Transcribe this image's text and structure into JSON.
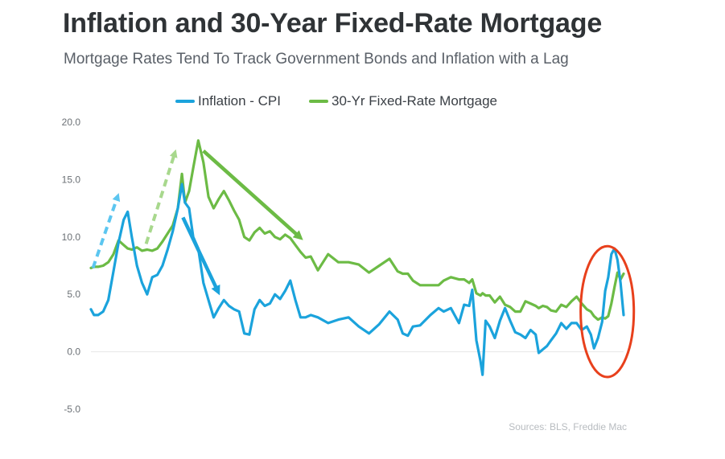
{
  "header": {
    "title": "Inflation and 30-Year Fixed-Rate Mortgage",
    "subtitle": "Mortgage Rates Tend To Track Government Bonds and Inflation with a Lag"
  },
  "source_note": "Sources: BLS, Freddie Mac",
  "colors": {
    "cpi": "#1ba3dc",
    "mortgage": "#6cbb45",
    "circle": "#e8401c",
    "grid": "#e6e6e6"
  },
  "chart_data": {
    "type": "line",
    "title": "Inflation and 30-Year Fixed-Rate Mortgage",
    "subtitle": "Mortgage Rates Tend To Track Government Bonds and Inflation with a Lag",
    "xlabel": "",
    "ylabel": "",
    "ylim": [
      -5,
      20
    ],
    "xlim": [
      1971.3,
      2023.4
    ],
    "yticks": [
      "20.0",
      "15.0",
      "10.0",
      "5.0",
      "0.0",
      "-5.0"
    ],
    "ytick_values": [
      20,
      15,
      10,
      5,
      0,
      -5
    ],
    "grid": false,
    "legend_position": "top-center",
    "series": [
      {
        "name": "Inflation - CPI",
        "x": [
          1971.3,
          1971.6,
          1972.0,
          1972.5,
          1973.0,
          1973.5,
          1974.0,
          1974.5,
          1974.9,
          1975.3,
          1975.8,
          1976.3,
          1976.8,
          1977.3,
          1977.8,
          1978.3,
          1978.8,
          1979.3,
          1979.8,
          1980.2,
          1980.5,
          1980.9,
          1981.3,
          1981.8,
          1982.3,
          1982.8,
          1983.3,
          1983.8,
          1984.3,
          1984.8,
          1985.3,
          1985.8,
          1986.3,
          1986.8,
          1987.3,
          1987.8,
          1988.3,
          1988.8,
          1989.3,
          1989.8,
          1990.3,
          1990.8,
          1991.3,
          1991.8,
          1992.3,
          1992.8,
          1993.5,
          1994.5,
          1995.5,
          1996.5,
          1997.5,
          1998.5,
          1999.5,
          2000.5,
          2001.3,
          2001.8,
          2002.3,
          2002.8,
          2003.5,
          2004.5,
          2005.3,
          2005.8,
          2006.5,
          2007.3,
          2007.8,
          2008.3,
          2008.6,
          2009.0,
          2009.4,
          2009.6,
          2009.9,
          2010.3,
          2010.8,
          2011.3,
          2011.8,
          2012.3,
          2012.8,
          2013.3,
          2013.8,
          2014.3,
          2014.8,
          2015.1,
          2015.5,
          2015.9,
          2016.3,
          2016.8,
          2017.3,
          2017.8,
          2018.3,
          2018.8,
          2019.3,
          2019.8,
          2020.2,
          2020.5,
          2020.9,
          2021.3,
          2021.6,
          2021.9,
          2022.2,
          2022.5,
          2022.8,
          2023.1,
          2023.4
        ],
        "values": [
          3.7,
          3.2,
          3.2,
          3.5,
          4.5,
          7.0,
          9.5,
          11.5,
          12.2,
          10.0,
          7.5,
          6.0,
          5.0,
          6.5,
          6.7,
          7.5,
          8.9,
          10.5,
          12.5,
          14.6,
          13.0,
          12.5,
          10.0,
          9.0,
          6.0,
          4.5,
          3.0,
          3.8,
          4.5,
          4.0,
          3.7,
          3.5,
          1.6,
          1.5,
          3.7,
          4.5,
          4.0,
          4.2,
          5.0,
          4.6,
          5.3,
          6.2,
          4.5,
          3.0,
          3.0,
          3.2,
          3.0,
          2.5,
          2.8,
          3.0,
          2.2,
          1.6,
          2.4,
          3.5,
          2.8,
          1.6,
          1.4,
          2.2,
          2.3,
          3.2,
          3.8,
          3.5,
          3.8,
          2.5,
          4.1,
          4.0,
          5.4,
          1.0,
          -0.8,
          -2.0,
          2.7,
          2.2,
          1.2,
          2.7,
          3.8,
          2.7,
          1.7,
          1.5,
          1.2,
          1.9,
          1.5,
          -0.1,
          0.2,
          0.5,
          1.0,
          1.6,
          2.5,
          2.0,
          2.5,
          2.5,
          1.9,
          2.2,
          1.5,
          0.3,
          1.2,
          2.6,
          5.3,
          6.5,
          8.5,
          9.0,
          8.0,
          6.0,
          3.2
        ]
      },
      {
        "name": "30-Yr Fixed-Rate Mortgage",
        "x": [
          1971.3,
          1971.6,
          1972.0,
          1972.5,
          1973.0,
          1973.5,
          1974.0,
          1974.5,
          1974.9,
          1975.3,
          1975.8,
          1976.3,
          1976.8,
          1977.3,
          1977.8,
          1978.3,
          1978.8,
          1979.3,
          1979.8,
          1980.2,
          1980.5,
          1980.9,
          1981.3,
          1981.8,
          1982.3,
          1982.8,
          1983.3,
          1983.8,
          1984.3,
          1984.8,
          1985.3,
          1985.8,
          1986.3,
          1986.8,
          1987.3,
          1987.8,
          1988.3,
          1988.8,
          1989.3,
          1989.8,
          1990.3,
          1990.8,
          1991.3,
          1991.8,
          1992.3,
          1992.8,
          1993.5,
          1994.5,
          1995.5,
          1996.5,
          1997.5,
          1998.5,
          1999.5,
          2000.5,
          2001.3,
          2001.8,
          2002.3,
          2002.8,
          2003.5,
          2004.5,
          2005.3,
          2005.8,
          2006.5,
          2007.3,
          2007.8,
          2008.3,
          2008.6,
          2009.0,
          2009.4,
          2009.6,
          2009.9,
          2010.3,
          2010.8,
          2011.3,
          2011.8,
          2012.3,
          2012.8,
          2013.3,
          2013.8,
          2014.3,
          2014.8,
          2015.1,
          2015.5,
          2015.9,
          2016.3,
          2016.8,
          2017.3,
          2017.8,
          2018.3,
          2018.8,
          2019.3,
          2019.8,
          2020.2,
          2020.5,
          2020.9,
          2021.3,
          2021.6,
          2021.9,
          2022.2,
          2022.5,
          2022.8,
          2023.1,
          2023.4
        ],
        "values": [
          7.3,
          7.4,
          7.4,
          7.5,
          7.8,
          8.5,
          9.7,
          9.3,
          9.0,
          8.9,
          9.1,
          8.8,
          8.9,
          8.8,
          9.0,
          9.6,
          10.3,
          11.0,
          12.5,
          15.5,
          13.0,
          14.0,
          16.0,
          18.4,
          16.5,
          13.5,
          12.5,
          13.3,
          14.0,
          13.2,
          12.3,
          11.5,
          10.0,
          9.7,
          10.4,
          10.8,
          10.3,
          10.5,
          10.0,
          9.8,
          10.2,
          9.9,
          9.3,
          8.7,
          8.2,
          8.3,
          7.1,
          8.5,
          7.8,
          7.8,
          7.6,
          6.9,
          7.5,
          8.1,
          7.0,
          6.8,
          6.8,
          6.2,
          5.8,
          5.8,
          5.8,
          6.2,
          6.5,
          6.3,
          6.3,
          6.0,
          6.3,
          5.1,
          4.9,
          5.1,
          4.9,
          4.9,
          4.3,
          4.8,
          4.1,
          3.9,
          3.5,
          3.5,
          4.4,
          4.2,
          4.0,
          3.8,
          4.0,
          3.9,
          3.6,
          3.5,
          4.1,
          3.9,
          4.4,
          4.8,
          4.2,
          3.7,
          3.5,
          3.1,
          2.8,
          3.0,
          2.9,
          3.1,
          4.2,
          5.6,
          6.9,
          6.3,
          6.8
        ]
      }
    ],
    "annotations": [
      {
        "kind": "arrow",
        "style": "dashed",
        "series": "Inflation - CPI",
        "from": [
          1971.5,
          7.3
        ],
        "to": [
          1973.9,
          13.5
        ]
      },
      {
        "kind": "arrow",
        "style": "dashed",
        "series": "30-Yr Fixed-Rate Mortgage",
        "from": [
          1976.7,
          9.4
        ],
        "to": [
          1979.5,
          17.3
        ]
      },
      {
        "kind": "arrow",
        "style": "solid",
        "series": "Inflation - CPI",
        "from": [
          1980.3,
          11.7
        ],
        "to": [
          1983.7,
          5.3
        ]
      },
      {
        "kind": "arrow",
        "style": "solid",
        "series": "30-Yr Fixed-Rate Mortgage",
        "from": [
          1982.3,
          17.5
        ],
        "to": [
          1991.7,
          10.0
        ]
      },
      {
        "kind": "ellipse",
        "series": "Inflation - CPI",
        "center": [
          2021.8,
          3.5
        ],
        "rx_years": 2.6,
        "ry_units": 5.7
      }
    ]
  }
}
